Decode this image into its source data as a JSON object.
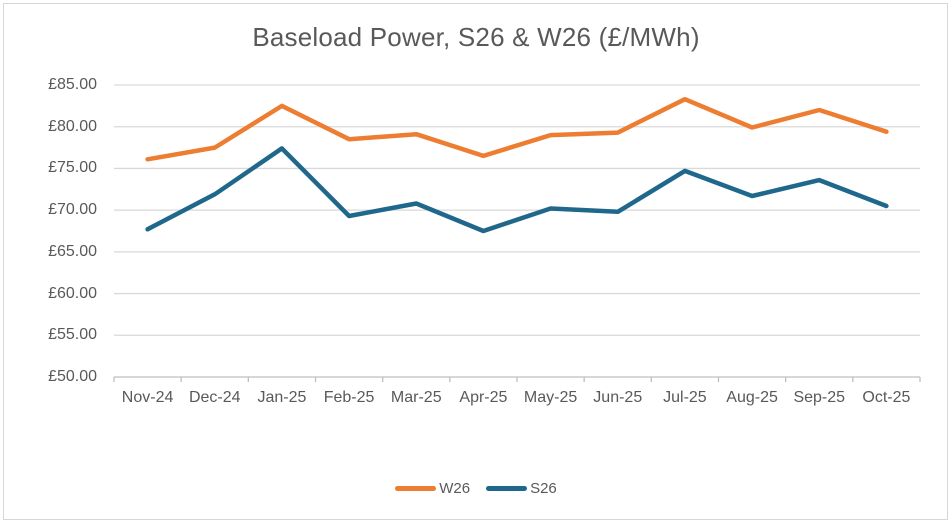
{
  "window": {
    "background": "#FFFFFF",
    "border_color": "#D6D6D6"
  },
  "chart_data": {
    "type": "line",
    "title": "Baseload Power, S26 & W26 (£/MWh)",
    "categories": [
      "Nov-24",
      "Dec-24",
      "Jan-25",
      "Feb-25",
      "Mar-25",
      "Apr-25",
      "May-25",
      "Jun-25",
      "Jul-25",
      "Aug-25",
      "Sep-25",
      "Oct-25"
    ],
    "series": [
      {
        "name": "W26",
        "color": "#ED7D31",
        "values": [
          76.1,
          77.5,
          82.5,
          78.5,
          79.1,
          76.5,
          79.0,
          79.3,
          83.3,
          79.9,
          82.0,
          79.4
        ]
      },
      {
        "name": "S26",
        "color": "#1F688C",
        "values": [
          67.7,
          71.9,
          77.4,
          69.3,
          70.8,
          67.5,
          70.2,
          69.8,
          74.7,
          71.7,
          73.6,
          70.5
        ]
      }
    ],
    "y_axis": {
      "tick_labels": [
        "£85.00",
        "£80.00",
        "£75.00",
        "£70.00",
        "£65.00",
        "£60.00",
        "£55.00",
        "£50.00"
      ],
      "tick_values": [
        85,
        80,
        75,
        70,
        65,
        60,
        55,
        50
      ],
      "min": 50,
      "max": 85,
      "currency_prefix": "£"
    },
    "xlabel": "",
    "ylabel": "",
    "grid": true,
    "legend_position": "bottom",
    "legend_entries": [
      "W26",
      "S26"
    ],
    "styles": {
      "gridline_color": "#D9D9D9",
      "axis_color": "#BFBFBF",
      "text_color": "#595959"
    }
  }
}
